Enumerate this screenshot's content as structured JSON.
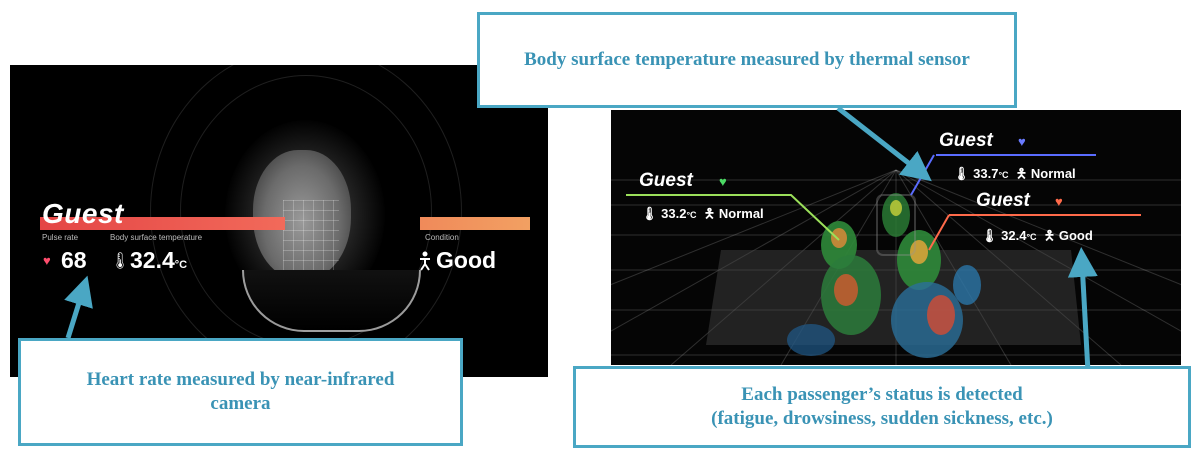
{
  "left_panel": {
    "guest_title": "Guest",
    "pulse_label": "Pulse rate",
    "temp_label": "Body surface temperature",
    "condition_label": "Condition",
    "pulse_value": "68",
    "temp_value": "32.4",
    "temp_unit": "°C",
    "condition_value": "Good"
  },
  "right_panel": {
    "passengers": [
      {
        "title": "Guest",
        "temp": "33.2",
        "unit": "°C",
        "status": "Normal",
        "heart_color": "#4cd964",
        "line_color": "#9be05a"
      },
      {
        "title": "Guest",
        "temp": "33.7",
        "unit": "°C",
        "status": "Normal",
        "heart_color": "#6a7bff",
        "line_color": "#5a6cff"
      },
      {
        "title": "Guest",
        "temp": "32.4",
        "unit": "°C",
        "status": "Good",
        "heart_color": "#ff6a4a",
        "line_color": "#ff6a4a"
      }
    ]
  },
  "callouts": {
    "top": "Body surface temperature measured by thermal sensor",
    "bottom_left": "Heart rate measured by near-infrared camera",
    "bottom_right_line1": "Each passenger’s status is detected",
    "bottom_right_line2": "(fatigue, drowsiness, sudden sickness, etc.)"
  },
  "colors": {
    "callout_border": "#4aa7c4",
    "callout_text": "#3a93b5"
  },
  "icons": [
    "heart-icon",
    "thermometer-icon",
    "person-icon",
    "arrow-icon"
  ]
}
